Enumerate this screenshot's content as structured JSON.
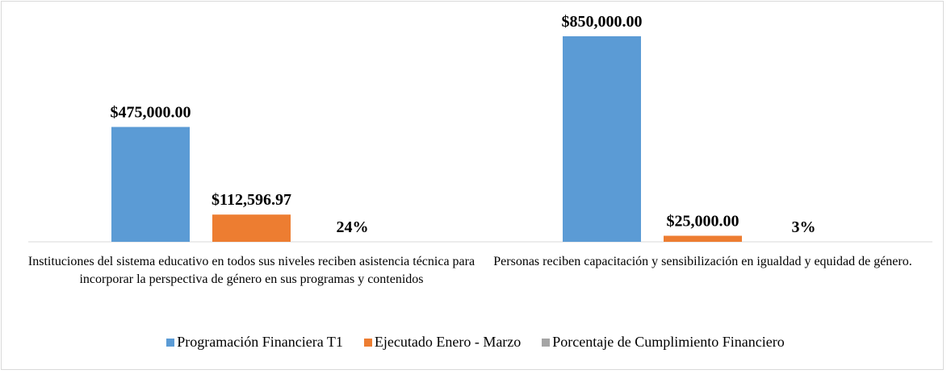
{
  "chart_data": {
    "type": "bar",
    "categories": [
      "Instituciones del sistema educativo en todos sus niveles reciben asistencia técnica para incorporar la perspectiva de género en sus programas y contenidos",
      "Personas reciben capacitación y sensibilización en igualdad y equidad de género."
    ],
    "series": [
      {
        "name": "Programación Financiera T1",
        "color": "#5b9bd5",
        "values": [
          475000,
          850000
        ],
        "value_labels": [
          "$475,000.00",
          "$850,000.00"
        ]
      },
      {
        "name": "Ejecutado Enero - Marzo",
        "color": "#ed7d31",
        "values": [
          112596.97,
          25000
        ],
        "value_labels": [
          "$112,596.97",
          "$25,000.00"
        ]
      },
      {
        "name": "Porcentaje de Cumplimiento Financiero",
        "color": "#a5a5a5",
        "values": [
          24,
          3
        ],
        "value_labels": [
          "24%",
          "3%"
        ]
      }
    ],
    "ylim": [
      0,
      900000
    ],
    "legend": "bottom"
  }
}
